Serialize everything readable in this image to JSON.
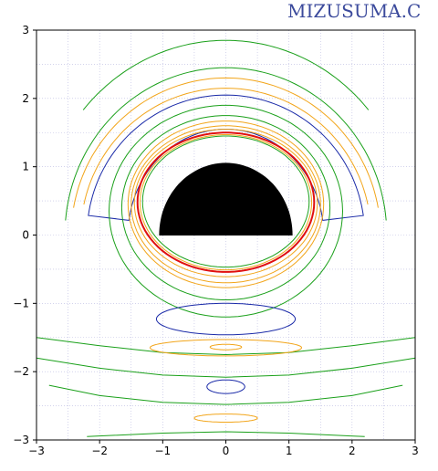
{
  "watermark": "MIZUSUMA.C",
  "chart_data": {
    "type": "contour",
    "title": "",
    "xlabel": "",
    "ylabel": "",
    "xlim": [
      -3,
      3
    ],
    "ylim": [
      -3,
      3
    ],
    "x_ticks": [
      -3,
      -2,
      -1,
      0,
      1,
      2,
      3
    ],
    "y_ticks": [
      -3,
      -2,
      -1,
      0,
      1,
      2,
      3
    ],
    "grid": true,
    "obstacle": {
      "shape": "half-disk",
      "center": [
        0,
        0
      ],
      "radius": 1.05,
      "color": "#000000"
    },
    "contours": [
      {
        "level_color": "green",
        "color": "#1aa01a",
        "kind": "arc",
        "cx": 0,
        "cy": 0,
        "rx": 2.95,
        "ry": 2.85,
        "from_deg": 140,
        "to_deg": 40
      },
      {
        "level_color": "green",
        "color": "#1aa01a",
        "kind": "arc",
        "cx": 0,
        "cy": 0,
        "rx": 2.55,
        "ry": 2.45,
        "from_deg": 175,
        "to_deg": 5
      },
      {
        "level_color": "orange",
        "color": "#f2a51a",
        "kind": "arc",
        "cx": 0,
        "cy": 0,
        "rx": 2.45,
        "ry": 2.3,
        "from_deg": 170,
        "to_deg": 10
      },
      {
        "level_color": "orange",
        "color": "#f2a51a",
        "kind": "arc",
        "cx": 0,
        "cy": 0,
        "rx": 2.3,
        "ry": 2.15,
        "from_deg": 168,
        "to_deg": 12
      },
      {
        "level_color": "blue",
        "color": "#1a2aa8",
        "kind": "band",
        "cx": 0,
        "cy": 0,
        "r_outer_x": 2.2,
        "r_outer_y": 2.05,
        "r_inner_x": 1.55,
        "r_inner_y": 1.55,
        "from_deg": 172,
        "to_deg": 8
      },
      {
        "level_color": "green",
        "color": "#1aa01a",
        "kind": "closed",
        "cx": 0,
        "cy": 0.35,
        "rx": 1.85,
        "ry": 1.55
      },
      {
        "level_color": "green",
        "color": "#1aa01a",
        "kind": "closed",
        "cx": 0,
        "cy": 0.4,
        "rx": 1.65,
        "ry": 1.35
      },
      {
        "level_color": "orange",
        "color": "#f2a51a",
        "kind": "closed",
        "cx": 0,
        "cy": 0.45,
        "rx": 1.55,
        "ry": 1.22
      },
      {
        "level_color": "orange",
        "color": "#f2a51a",
        "kind": "closed",
        "cx": 0,
        "cy": 0.45,
        "rx": 1.5,
        "ry": 1.15
      },
      {
        "level_color": "orange",
        "color": "#f2a51a",
        "kind": "closed",
        "cx": 0,
        "cy": 0.47,
        "rx": 1.45,
        "ry": 1.08
      },
      {
        "level_color": "red",
        "color": "#e01010",
        "kind": "closed",
        "cx": 0,
        "cy": 0.48,
        "rx": 1.4,
        "ry": 1.02
      },
      {
        "level_color": "orange",
        "color": "#f2a51a",
        "kind": "closed",
        "cx": 0,
        "cy": 0.48,
        "rx": 1.36,
        "ry": 0.99
      },
      {
        "level_color": "green",
        "color": "#1aa01a",
        "kind": "closed",
        "cx": 0,
        "cy": 0.49,
        "rx": 1.32,
        "ry": 0.96
      },
      {
        "level_color": "blue",
        "color": "#1a2aa8",
        "kind": "closed",
        "cx": 0,
        "cy": -1.23,
        "rx": 1.1,
        "ry": 0.23
      },
      {
        "level_color": "green",
        "color": "#1aa01a",
        "kind": "open",
        "points": [
          [
            -3,
            -1.5
          ],
          [
            -2,
            -1.62
          ],
          [
            -1,
            -1.72
          ],
          [
            0,
            -1.75
          ],
          [
            1,
            -1.72
          ],
          [
            2,
            -1.62
          ],
          [
            3,
            -1.5
          ]
        ]
      },
      {
        "level_color": "orange",
        "color": "#f2a51a",
        "kind": "closed",
        "cx": 0,
        "cy": -1.65,
        "rx": 1.2,
        "ry": 0.12
      },
      {
        "level_color": "orange",
        "color": "#f2a51a",
        "kind": "closed",
        "cx": 0,
        "cy": -1.64,
        "rx": 0.25,
        "ry": 0.04
      },
      {
        "level_color": "green",
        "color": "#1aa01a",
        "kind": "open",
        "points": [
          [
            -3,
            -1.8
          ],
          [
            -2,
            -1.95
          ],
          [
            -1,
            -2.05
          ],
          [
            0,
            -2.08
          ],
          [
            1,
            -2.05
          ],
          [
            2,
            -1.95
          ],
          [
            3,
            -1.8
          ]
        ]
      },
      {
        "level_color": "blue",
        "color": "#1a2aa8",
        "kind": "closed",
        "cx": 0,
        "cy": -2.22,
        "rx": 0.3,
        "ry": 0.1
      },
      {
        "level_color": "green",
        "color": "#1aa01a",
        "kind": "open",
        "points": [
          [
            -2.8,
            -2.2
          ],
          [
            -2,
            -2.35
          ],
          [
            -1,
            -2.45
          ],
          [
            0,
            -2.48
          ],
          [
            1,
            -2.45
          ],
          [
            2,
            -2.35
          ],
          [
            2.8,
            -2.2
          ]
        ]
      },
      {
        "level_color": "orange",
        "color": "#f2a51a",
        "kind": "closed",
        "cx": 0,
        "cy": -2.68,
        "rx": 0.5,
        "ry": 0.06
      },
      {
        "level_color": "green",
        "color": "#1aa01a",
        "kind": "open",
        "points": [
          [
            -2.2,
            -2.95
          ],
          [
            -1,
            -2.9
          ],
          [
            0,
            -2.88
          ],
          [
            1,
            -2.9
          ],
          [
            2.2,
            -2.95
          ]
        ]
      }
    ]
  }
}
